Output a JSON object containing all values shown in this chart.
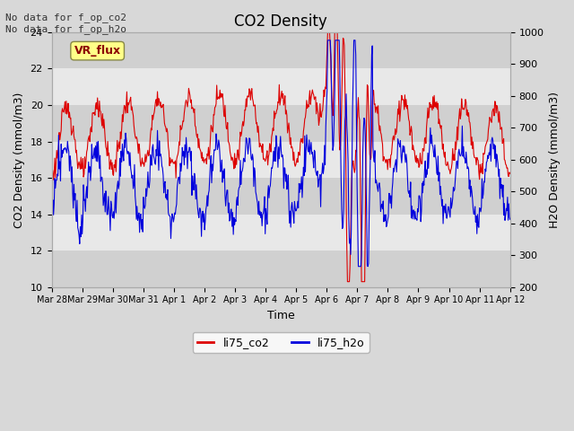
{
  "title": "CO2 Density",
  "xlabel": "Time",
  "ylabel_left": "CO2 Density (mmol/m3)",
  "ylabel_right": "H2O Density (mmol/m3)",
  "ylim_left": [
    10,
    24
  ],
  "ylim_right": [
    200,
    1000
  ],
  "background_color": "#d8d8d8",
  "plot_bg_color": "#e8e8e8",
  "band_color_light": "#e8e8e8",
  "band_color_dark": "#d0d0d0",
  "annotation_text": "No data for f_op_co2\nNo data for f_op_h2o",
  "legend_label1": "li75_co2",
  "legend_label2": "li75_h2o",
  "vr_flux_label": "VR_flux",
  "x_tick_labels": [
    "Mar 28",
    "Mar 29",
    "Mar 30",
    "Mar 31",
    "Apr 1",
    "Apr 2",
    "Apr 3",
    "Apr 4",
    "Apr 5",
    "Apr 6",
    "Apr 7",
    "Apr 8",
    "Apr 9",
    "Apr 10",
    "Apr 11",
    "Apr 12"
  ],
  "color_co2": "#dd0000",
  "color_h2o": "#0000dd",
  "line_width": 0.8
}
